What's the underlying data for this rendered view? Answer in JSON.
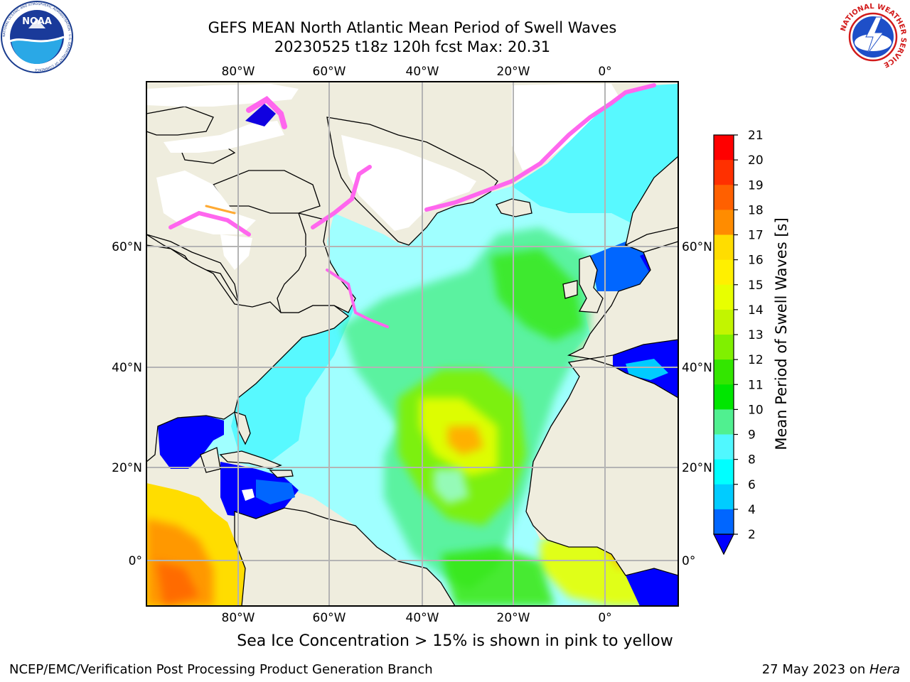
{
  "title_line1": "GEFS MEAN North Atlantic Mean Period of Swell Waves",
  "title_line2": "20230525 t18z 120h fcst   Max: 20.31",
  "note": "Sea Ice Concentration > 15% is shown in pink to yellow",
  "footer_left": "NCEP/EMC/Verification Post Processing Product Generation Branch",
  "footer_date": "27 May 2023 on ",
  "footer_host": "Hera",
  "logos": {
    "noaa": {
      "label": "NOAA",
      "ring_text": "NATIONAL OCEANIC AND ATMOSPHERIC ADMINISTRATION · U.S. DEPARTMENT OF COMMERCE"
    },
    "nws": {
      "ring_text": "NATIONAL WEATHER SERVICE"
    }
  },
  "map": {
    "lon_labels": [
      "80°W",
      "60°W",
      "40°W",
      "20°W",
      "0°"
    ],
    "lat_labels": [
      "60°N",
      "40°N",
      "20°N",
      "0°"
    ]
  },
  "colorbar": {
    "label": "Mean Period of Swell Waves [s]",
    "ticks": [
      "21",
      "20",
      "19",
      "18",
      "17",
      "16",
      "15",
      "14",
      "13",
      "12",
      "11",
      "10",
      "9",
      "8",
      "6",
      "4",
      "2"
    ],
    "colors": [
      "#ff0000",
      "#ff3000",
      "#ff6000",
      "#ff8c00",
      "#ffb000",
      "#ffdd00",
      "#fff000",
      "#e8ff00",
      "#c2f500",
      "#80f000",
      "#33e600",
      "#00e600",
      "#50f090",
      "#a0ffff",
      "#50f8ff",
      "#00ffff",
      "#00ccff",
      "#0066ff",
      "#0000ff"
    ]
  }
}
